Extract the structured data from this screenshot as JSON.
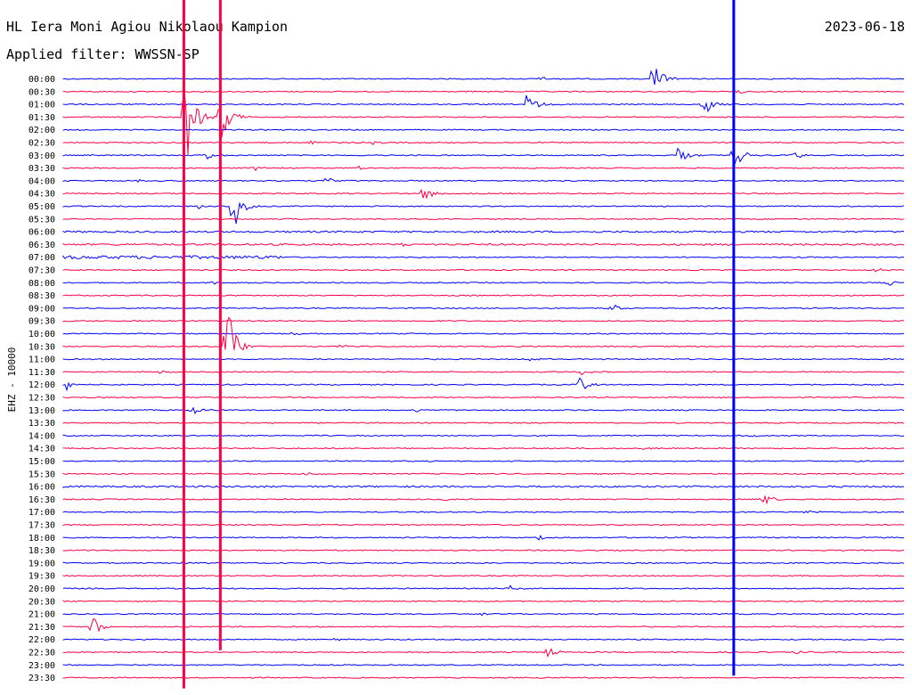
{
  "header": {
    "station": "HL Iera Moni Agiou Nikolaou Kampion",
    "filter": "Applied filter: WWSSN-SP",
    "date": "2023-06-18"
  },
  "chart_data": {
    "type": "line",
    "title": "HL Iera Moni Agiou Nikolaou Kampion",
    "subtitle": "Applied filter: WWSSN-SP",
    "date": "2023-06-18",
    "ylabel": "EHZ - 10000",
    "row_labels": [
      "00:00",
      "00:30",
      "01:00",
      "01:30",
      "02:00",
      "02:30",
      "03:00",
      "03:30",
      "04:00",
      "04:30",
      "05:00",
      "05:30",
      "06:00",
      "06:30",
      "07:00",
      "07:30",
      "08:00",
      "08:30",
      "09:00",
      "09:30",
      "10:00",
      "10:30",
      "11:00",
      "11:30",
      "12:00",
      "12:30",
      "13:00",
      "13:30",
      "14:00",
      "14:30",
      "15:00",
      "15:30",
      "16:00",
      "16:30",
      "17:00",
      "17:30",
      "18:00",
      "18:30",
      "19:00",
      "19:30",
      "20:00",
      "20:30",
      "21:00",
      "21:30",
      "22:00",
      "22:30",
      "23:00",
      "23:30"
    ],
    "row_minutes": 30,
    "trace_colors": [
      "#0000ff",
      "#ff0044"
    ],
    "events": [
      {
        "row": 0,
        "minute": 17.0,
        "amplitude": 8
      },
      {
        "row": 0,
        "minute": 21.0,
        "amplitude": 55
      },
      {
        "row": 1,
        "minute": 24.0,
        "amplitude": 5
      },
      {
        "row": 2,
        "minute": 16.5,
        "amplitude": 30
      },
      {
        "row": 2,
        "minute": 22.8,
        "amplitude": 40
      },
      {
        "row": 3,
        "minute": 4.3,
        "amplitude": 150
      },
      {
        "row": 3,
        "minute": 5.6,
        "amplitude": 85
      },
      {
        "row": 5,
        "minute": 8.8,
        "amplitude": 6
      },
      {
        "row": 5,
        "minute": 11.0,
        "amplitude": 5
      },
      {
        "row": 6,
        "minute": 5.1,
        "amplitude": 10
      },
      {
        "row": 6,
        "minute": 21.9,
        "amplitude": 22
      },
      {
        "row": 6,
        "minute": 23.9,
        "amplitude": 35
      },
      {
        "row": 6,
        "minute": 26.0,
        "amplitude": 15
      },
      {
        "row": 7,
        "minute": 6.8,
        "amplitude": 8
      },
      {
        "row": 7,
        "minute": 10.5,
        "amplitude": 6
      },
      {
        "row": 8,
        "minute": 9.4,
        "amplitude": 20
      },
      {
        "row": 8,
        "minute": 2.6,
        "amplitude": 5
      },
      {
        "row": 9,
        "minute": 12.8,
        "amplitude": 28
      },
      {
        "row": 10,
        "minute": 4.8,
        "amplitude": 14
      },
      {
        "row": 10,
        "minute": 6.0,
        "amplitude": 85
      },
      {
        "row": 13,
        "minute": 12.1,
        "amplitude": 5
      },
      {
        "row": 15,
        "minute": 28.9,
        "amplitude": 8
      },
      {
        "row": 16,
        "minute": 5.3,
        "amplitude": 5
      },
      {
        "row": 16,
        "minute": 29.4,
        "amplitude": 10
      },
      {
        "row": 18,
        "minute": 19.5,
        "amplitude": 12
      },
      {
        "row": 20,
        "minute": 8.1,
        "amplitude": 6
      },
      {
        "row": 21,
        "minute": 5.8,
        "amplitude": 120
      },
      {
        "row": 21,
        "minute": 9.8,
        "amplitude": 5
      },
      {
        "row": 22,
        "minute": 16.6,
        "amplitude": 5
      },
      {
        "row": 23,
        "minute": 18.3,
        "amplitude": 12
      },
      {
        "row": 23,
        "minute": 3.4,
        "amplitude": 5
      },
      {
        "row": 24,
        "minute": 0.1,
        "amplitude": 18
      },
      {
        "row": 24,
        "minute": 18.4,
        "amplitude": 22
      },
      {
        "row": 26,
        "minute": 4.6,
        "amplitude": 10
      },
      {
        "row": 26,
        "minute": 12.5,
        "amplitude": 5
      },
      {
        "row": 28,
        "minute": 24.4,
        "amplitude": 5
      },
      {
        "row": 29,
        "minute": 20.6,
        "amplitude": 5
      },
      {
        "row": 31,
        "minute": 8.5,
        "amplitude": 6
      },
      {
        "row": 33,
        "minute": 13.6,
        "amplitude": 5
      },
      {
        "row": 33,
        "minute": 24.9,
        "amplitude": 20
      },
      {
        "row": 34,
        "minute": 26.5,
        "amplitude": 6
      },
      {
        "row": 36,
        "minute": 16.9,
        "amplitude": 6
      },
      {
        "row": 37,
        "minute": 0.4,
        "amplitude": 5
      },
      {
        "row": 38,
        "minute": 4.2,
        "amplitude": 6
      },
      {
        "row": 40,
        "minute": 15.9,
        "amplitude": 10
      },
      {
        "row": 42,
        "minute": 14.9,
        "amplitude": 5
      },
      {
        "row": 43,
        "minute": 1.0,
        "amplitude": 30
      },
      {
        "row": 44,
        "minute": 9.6,
        "amplitude": 5
      },
      {
        "row": 45,
        "minute": 17.2,
        "amplitude": 16
      },
      {
        "row": 45,
        "minute": 26.1,
        "amplitude": 7
      }
    ],
    "spanning_spikes": [
      {
        "minute": 4.3,
        "from_row": 0,
        "to_row": 47,
        "color": "#ff0044"
      },
      {
        "minute": 5.6,
        "from_row": 0,
        "to_row": 44,
        "color": "#ff0044"
      },
      {
        "minute": 23.9,
        "from_row": 0,
        "to_row": 46,
        "color": "#0000ff"
      }
    ]
  }
}
